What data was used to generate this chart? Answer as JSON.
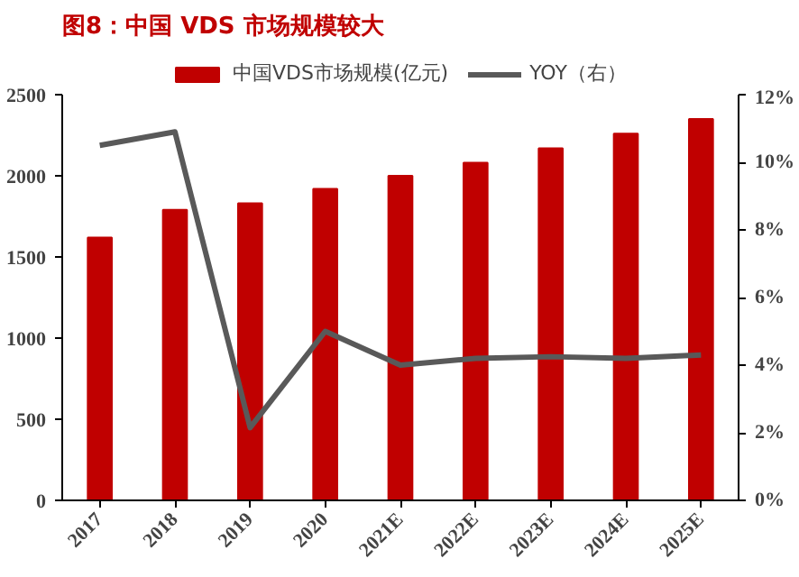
{
  "chart_data": {
    "type": "bar",
    "title": "图8：中国 VDS 市场规模较大",
    "categories": [
      "2017",
      "2018",
      "2019",
      "2020",
      "2021E",
      "2022E",
      "2023E",
      "2024E",
      "2025E"
    ],
    "series": [
      {
        "name": "中国VDS市场规模(亿元)",
        "color": "#c00000",
        "values": [
          1620,
          1790,
          1830,
          1920,
          2000,
          2080,
          2170,
          2260,
          2350
        ]
      },
      {
        "name": "YOY（右）",
        "type": "line",
        "axis": "y2",
        "color": "#595959",
        "values": [
          10.5,
          10.9,
          2.15,
          5.0,
          4.0,
          4.2,
          4.25,
          4.2,
          4.3
        ]
      }
    ],
    "ylim": [
      0,
      2500
    ],
    "yticks": [
      0,
      500,
      1000,
      1500,
      2000,
      2500
    ],
    "y2lim": [
      0,
      12
    ],
    "y2ticks": [
      {
        "value": 0,
        "label": "0%"
      },
      {
        "value": 2,
        "label": "2%"
      },
      {
        "value": 4,
        "label": "4%"
      },
      {
        "value": 6,
        "label": "6%"
      },
      {
        "value": 8,
        "label": "8%"
      },
      {
        "value": 10,
        "label": "10%"
      },
      {
        "value": 12,
        "label": "12%"
      }
    ],
    "legend": "top",
    "grid": false
  }
}
